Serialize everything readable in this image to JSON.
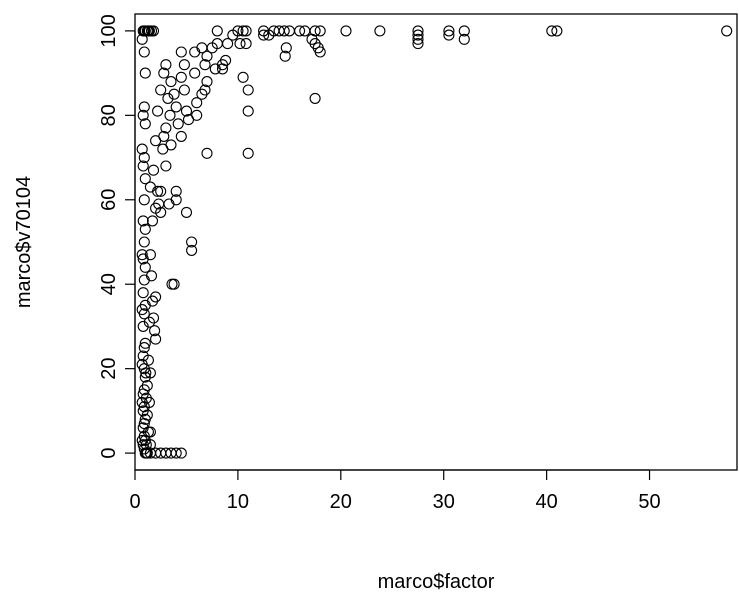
{
  "chart_data": {
    "type": "scatter",
    "title": "",
    "xlabel": "marco$factor",
    "ylabel": "marco$v70104",
    "xlim": [
      0,
      58.5
    ],
    "ylim": [
      -4,
      104
    ],
    "xticks": [
      0,
      10,
      20,
      30,
      40,
      50
    ],
    "yticks": [
      0,
      20,
      40,
      60,
      80,
      100
    ],
    "grid": false,
    "legend": "none",
    "marker": "open-circle",
    "series": [
      {
        "x": [
          57.5,
          41.0,
          40.5,
          32.0,
          32.0,
          30.5,
          30.5,
          27.5,
          27.5,
          27.5,
          27.5,
          23.8,
          20.5,
          18.0,
          18.0,
          17.8,
          17.5,
          17.5,
          17.5,
          17.2,
          16.5,
          16.0,
          15.0,
          14.7,
          14.6,
          14.5,
          14.0,
          13.5,
          13.0,
          12.5,
          12.5,
          11.0,
          11.0,
          11.0,
          10.8,
          10.8,
          10.5,
          10.5,
          10.2,
          10.0,
          9.5,
          9.0,
          8.8,
          8.5,
          8.5,
          8.0,
          8.0,
          7.8,
          7.5,
          7.0,
          7.0,
          7.0,
          6.8,
          6.8,
          6.5,
          6.5,
          6.0,
          6.0,
          5.8,
          5.8,
          5.5,
          5.5,
          5.2,
          5.0,
          5.0,
          4.8,
          4.8,
          4.5,
          4.5,
          4.5,
          4.2,
          4.0,
          4.0,
          4.0,
          3.8,
          3.8,
          3.6,
          3.5,
          3.5,
          3.4,
          3.3,
          3.2,
          3.0,
          3.0,
          3.0,
          2.8,
          2.8,
          2.7,
          2.5,
          2.5,
          2.5,
          2.3,
          2.2,
          2.2,
          2.0,
          2.0,
          2.0,
          2.0,
          1.9,
          1.8,
          1.8,
          1.7,
          1.7,
          1.6,
          1.5,
          1.5,
          1.5,
          1.4,
          1.4,
          1.3,
          1.3,
          1.2,
          1.2,
          1.1,
          1.1,
          1.05,
          1.0,
          1.0,
          1.0,
          1.0,
          1.0,
          1.0,
          1.0,
          1.0,
          1.0,
          1.0,
          1.0,
          0.9,
          0.9,
          0.9,
          0.9,
          0.9,
          0.9,
          0.9,
          0.9,
          0.9,
          0.9,
          0.9,
          0.9,
          0.9,
          0.9,
          0.9,
          0.8,
          0.8,
          0.8,
          0.8,
          0.8,
          0.8,
          0.8,
          0.8,
          0.8,
          0.8,
          0.8,
          0.8,
          0.7,
          0.7,
          0.7,
          0.7,
          0.7,
          0.7,
          0.7,
          1.5,
          1.5,
          1.3,
          1.6,
          1.2,
          1.1,
          1.0,
          1.4,
          1.8,
          2.0,
          2.5,
          3.0,
          3.5,
          4.0,
          4.5,
          1.5,
          1.2
        ],
        "y": [
          100,
          100,
          100,
          100,
          98,
          100,
          99,
          100,
          99,
          98,
          97,
          100,
          100,
          100,
          95,
          96,
          84,
          100,
          97,
          98,
          100,
          100,
          100,
          96,
          94,
          100,
          100,
          100,
          99,
          100,
          99,
          86,
          81,
          71,
          100,
          97,
          100,
          89,
          97,
          100,
          99,
          97,
          93,
          91,
          92,
          97,
          100,
          91,
          96,
          71,
          94,
          88,
          92,
          86,
          85,
          96,
          80,
          83,
          90,
          95,
          48,
          50,
          79,
          57,
          81,
          86,
          92,
          89,
          75,
          95,
          78,
          60,
          62,
          82,
          40,
          85,
          40,
          73,
          88,
          80,
          59,
          84,
          68,
          77,
          92,
          75,
          90,
          72,
          57,
          62,
          86,
          59,
          62,
          81,
          27,
          37,
          58,
          74,
          29,
          32,
          67,
          36,
          55,
          42,
          19,
          47,
          63,
          12,
          31,
          5,
          22,
          16,
          9,
          2,
          13,
          19,
          0,
          8,
          18,
          26,
          35,
          44,
          53,
          65,
          78,
          90,
          100,
          1,
          4,
          7,
          11,
          15,
          20,
          25,
          33,
          41,
          50,
          60,
          70,
          82,
          95,
          100,
          2,
          6,
          10,
          14,
          23,
          30,
          38,
          46,
          55,
          68,
          80,
          100,
          3,
          12,
          21,
          34,
          47,
          72,
          98,
          0,
          5,
          100,
          100,
          100,
          0,
          3,
          100,
          100,
          0,
          0,
          0,
          0,
          0,
          0,
          2,
          0
        ]
      }
    ]
  }
}
